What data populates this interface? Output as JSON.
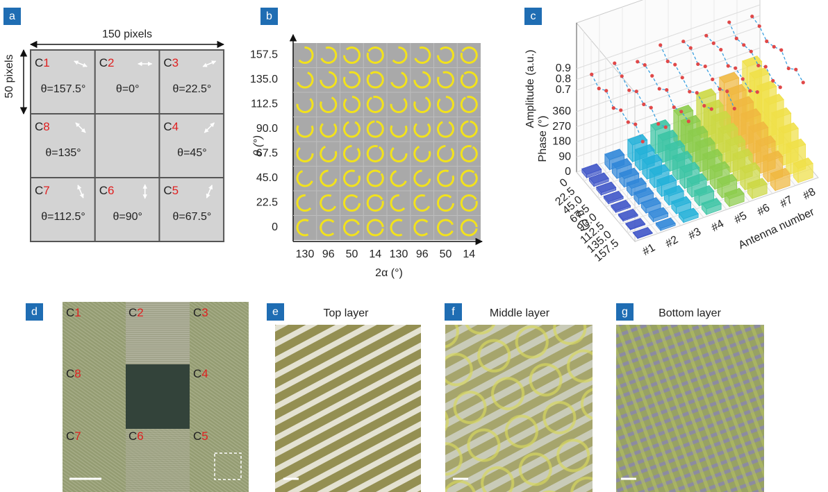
{
  "panels": {
    "a": {
      "label": "a",
      "width_label": "150 pixels",
      "height_label": "50 pixels",
      "cells": [
        {
          "prefix": "C",
          "index": "1",
          "theta": "θ=157.5°"
        },
        {
          "prefix": "C",
          "index": "2",
          "theta": "θ=0°"
        },
        {
          "prefix": "C",
          "index": "3",
          "theta": "θ=22.5°"
        },
        {
          "prefix": "C",
          "index": "4",
          "theta": "θ=45°"
        },
        {
          "prefix": "C",
          "index": "5",
          "theta": "θ=67.5°"
        },
        {
          "prefix": "C",
          "index": "6",
          "theta": "θ=90°"
        },
        {
          "prefix": "C",
          "index": "7",
          "theta": "θ=112.5°"
        },
        {
          "prefix": "C",
          "index": "8",
          "theta": "θ=135°"
        }
      ]
    },
    "b": {
      "label": "b",
      "y_label": "θ (°)",
      "x_label": "2α (°)",
      "y_ticks": [
        "0",
        "22.5",
        "45.0",
        "67.5",
        "90.0",
        "112.5",
        "135.0",
        "157.5"
      ],
      "x_ticks": [
        "130",
        "96",
        "50",
        "14",
        "130",
        "96",
        "50",
        "14"
      ]
    },
    "c": {
      "label": "c",
      "type": "bar3d",
      "amplitude_label": "Amplitude (a.u.)",
      "phase_label": "Phase (°)",
      "theta_label": "θ (°)",
      "antenna_label": "Antenna number",
      "theta_categories": [
        "0",
        "22.5",
        "45.0",
        "67.5",
        "90.0",
        "112.5",
        "135.0",
        "157.5"
      ],
      "antenna_categories": [
        "#1",
        "#2",
        "#3",
        "#4",
        "#5",
        "#6",
        "#7",
        "#8"
      ],
      "phase_lim": [
        0,
        360
      ],
      "phase_ticks": [
        0,
        90,
        180,
        270,
        360
      ],
      "amplitude_lim": [
        0.7,
        0.9
      ],
      "amplitude_ticks": [
        0.7,
        0.8,
        0.9
      ],
      "colors": [
        "#3f55c8",
        "#2f86d8",
        "#22b0d8",
        "#3cc4a4",
        "#8ccc4c",
        "#ccd844",
        "#f0b840",
        "#f0e048"
      ],
      "phase": [
        [
          20,
          60,
          100,
          140,
          180,
          230,
          280,
          330
        ],
        [
          18,
          55,
          92,
          130,
          170,
          215,
          260,
          310
        ],
        [
          15,
          50,
          85,
          120,
          158,
          200,
          240,
          285
        ],
        [
          12,
          44,
          76,
          108,
          142,
          180,
          218,
          258
        ],
        [
          10,
          38,
          66,
          94,
          124,
          158,
          192,
          228
        ],
        [
          8,
          30,
          54,
          78,
          102,
          130,
          160,
          190
        ],
        [
          5,
          22,
          40,
          58,
          78,
          100,
          122,
          146
        ],
        [
          3,
          12,
          22,
          34,
          46,
          58,
          70,
          84
        ]
      ],
      "amplitude": [
        [
          0.85,
          0.88,
          0.82,
          0.9,
          0.86,
          0.84,
          0.89,
          0.87
        ],
        [
          0.8,
          0.84,
          0.87,
          0.83,
          0.88,
          0.85,
          0.82,
          0.86
        ],
        [
          0.86,
          0.79,
          0.85,
          0.88,
          0.81,
          0.87,
          0.84,
          0.8
        ],
        [
          0.78,
          0.86,
          0.81,
          0.84,
          0.87,
          0.8,
          0.86,
          0.83
        ],
        [
          0.84,
          0.82,
          0.88,
          0.79,
          0.83,
          0.86,
          0.81,
          0.88
        ],
        [
          0.81,
          0.87,
          0.8,
          0.86,
          0.82,
          0.84,
          0.88,
          0.79
        ],
        [
          0.87,
          0.8,
          0.84,
          0.82,
          0.88,
          0.81,
          0.83,
          0.86
        ],
        [
          0.79,
          0.85,
          0.83,
          0.87,
          0.8,
          0.88,
          0.85,
          0.82
        ]
      ]
    },
    "d": {
      "label": "d",
      "cells": [
        {
          "prefix": "C",
          "index": "1"
        },
        {
          "prefix": "C",
          "index": "2"
        },
        {
          "prefix": "C",
          "index": "3"
        },
        {
          "prefix": "C",
          "index": "4"
        },
        {
          "prefix": "C",
          "index": "5"
        },
        {
          "prefix": "C",
          "index": "6"
        },
        {
          "prefix": "C",
          "index": "7"
        },
        {
          "prefix": "C",
          "index": "8"
        }
      ]
    },
    "e": {
      "label": "e",
      "title": "Top layer"
    },
    "f": {
      "label": "f",
      "title": "Middle layer"
    },
    "g": {
      "label": "g",
      "title": "Bottom layer"
    }
  }
}
